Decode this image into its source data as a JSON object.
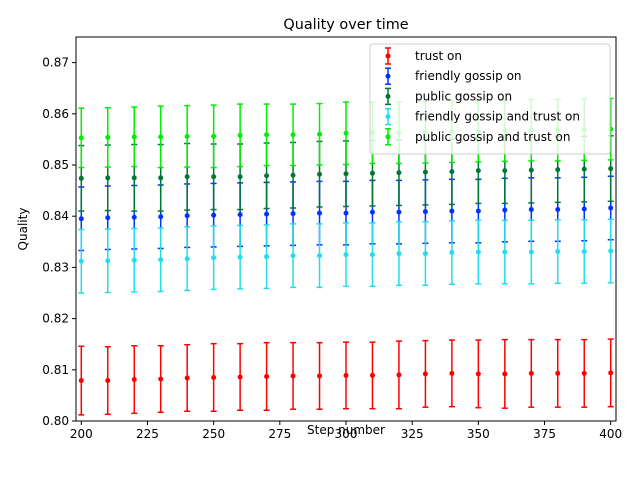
{
  "chart_data": {
    "type": "scatter",
    "title": "Quality over time",
    "xlabel": "Step number",
    "ylabel": "Quality",
    "xlim": [
      198,
      402
    ],
    "ylim": [
      0.8,
      0.875
    ],
    "x_ticks": [
      200,
      225,
      250,
      275,
      300,
      325,
      350,
      375,
      400
    ],
    "y_ticks": [
      0.8,
      0.81,
      0.82,
      0.83,
      0.84,
      0.85,
      0.86,
      0.87
    ],
    "y_tick_labels": [
      "0.80",
      "0.81",
      "0.82",
      "0.83",
      "0.84",
      "0.85",
      "0.86",
      "0.87"
    ],
    "grid": false,
    "legend_position": "upper-right",
    "x": [
      200,
      210,
      220,
      230,
      240,
      250,
      260,
      270,
      280,
      290,
      300,
      310,
      320,
      330,
      340,
      350,
      360,
      370,
      380,
      390,
      400
    ],
    "series": [
      {
        "name": "trust on",
        "color": "#ff0000",
        "values": [
          0.8079,
          0.8079,
          0.8081,
          0.8082,
          0.8084,
          0.8085,
          0.8086,
          0.8087,
          0.8088,
          0.8088,
          0.8089,
          0.8089,
          0.809,
          0.8092,
          0.8093,
          0.8092,
          0.8092,
          0.8093,
          0.8093,
          0.8093,
          0.8094
        ],
        "errors": [
          0.0067,
          0.0066,
          0.0066,
          0.0065,
          0.0065,
          0.0066,
          0.0065,
          0.0066,
          0.0065,
          0.0065,
          0.0065,
          0.0065,
          0.0066,
          0.0065,
          0.0065,
          0.0066,
          0.0067,
          0.0066,
          0.0066,
          0.0066,
          0.0066
        ]
      },
      {
        "name": "friendly gossip on",
        "color": "#0033ff",
        "values": [
          0.8395,
          0.8397,
          0.8398,
          0.8399,
          0.8401,
          0.8402,
          0.8403,
          0.8404,
          0.8405,
          0.8406,
          0.8406,
          0.8408,
          0.8408,
          0.8409,
          0.841,
          0.841,
          0.8412,
          0.8413,
          0.8413,
          0.8414,
          0.8416
        ],
        "errors": [
          0.0062,
          0.0062,
          0.0062,
          0.0062,
          0.0062,
          0.0062,
          0.0062,
          0.0062,
          0.0062,
          0.0062,
          0.0062,
          0.0062,
          0.0062,
          0.0062,
          0.0062,
          0.0062,
          0.0062,
          0.0062,
          0.0062,
          0.0062,
          0.0062
        ]
      },
      {
        "name": "public gossip on",
        "color": "#007733",
        "values": [
          0.8474,
          0.8475,
          0.8475,
          0.8475,
          0.8477,
          0.8477,
          0.8477,
          0.8479,
          0.848,
          0.8482,
          0.8483,
          0.8484,
          0.8485,
          0.8486,
          0.8487,
          0.8489,
          0.8489,
          0.849,
          0.8491,
          0.8492,
          0.8493
        ],
        "errors": [
          0.0064,
          0.0064,
          0.0065,
          0.0065,
          0.0065,
          0.0064,
          0.0064,
          0.0064,
          0.0064,
          0.0064,
          0.0064,
          0.0064,
          0.0064,
          0.0064,
          0.0064,
          0.0064,
          0.0064,
          0.0064,
          0.0064,
          0.0064,
          0.0064
        ]
      },
      {
        "name": "friendly gossip and trust on",
        "color": "#22ddee",
        "values": [
          0.8312,
          0.8313,
          0.8314,
          0.8315,
          0.8317,
          0.8319,
          0.832,
          0.8321,
          0.8323,
          0.8323,
          0.8325,
          0.8325,
          0.8327,
          0.8327,
          0.8329,
          0.833,
          0.833,
          0.833,
          0.8331,
          0.8331,
          0.8332
        ],
        "errors": [
          0.0062,
          0.0062,
          0.0062,
          0.0062,
          0.0062,
          0.0062,
          0.0062,
          0.0062,
          0.0062,
          0.0062,
          0.0062,
          0.0062,
          0.0062,
          0.0062,
          0.0062,
          0.0062,
          0.0062,
          0.0062,
          0.0062,
          0.0062,
          0.0062
        ]
      },
      {
        "name": "public gossip and trust on",
        "color": "#00ee00",
        "values": [
          0.8553,
          0.8554,
          0.8555,
          0.8555,
          0.8556,
          0.8556,
          0.8558,
          0.8559,
          0.8559,
          0.856,
          0.8562,
          0.8563,
          0.8563,
          0.8564,
          0.8565,
          0.8566,
          0.8567,
          0.8568,
          0.8568,
          0.8569,
          0.857
        ],
        "errors": [
          0.0058,
          0.0058,
          0.0058,
          0.006,
          0.006,
          0.0061,
          0.0061,
          0.006,
          0.006,
          0.006,
          0.0061,
          0.006,
          0.006,
          0.006,
          0.006,
          0.006,
          0.006,
          0.006,
          0.006,
          0.006,
          0.006
        ]
      }
    ]
  }
}
